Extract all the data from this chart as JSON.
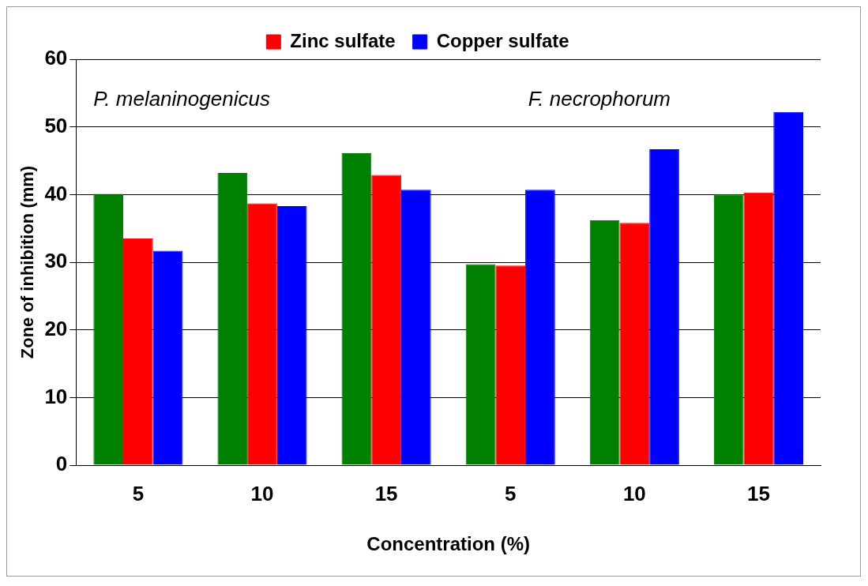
{
  "chart_data": {
    "type": "bar",
    "xlabel": "Concentration (%)",
    "ylabel": "Zone of inhibition (mm)",
    "categories": [
      "5",
      "10",
      "15",
      "5",
      "10",
      "15"
    ],
    "series": [
      {
        "color": "#008000",
        "values": [
          40.1,
          43.2,
          46.1,
          29.7,
          36.2,
          40.0
        ]
      },
      {
        "name": "Zinc sulfate",
        "color": "#ff0000",
        "values": [
          33.5,
          38.7,
          42.9,
          29.5,
          35.8,
          40.3
        ]
      },
      {
        "name": "Copper sulfate",
        "color": "#0000ff",
        "values": [
          31.7,
          38.3,
          40.7,
          40.7,
          46.7,
          52.2
        ]
      }
    ],
    "ylim": [
      0,
      60
    ],
    "yticks": [
      0,
      10,
      20,
      30,
      40,
      50,
      60
    ],
    "grid": "y",
    "legend": "top",
    "annotations": [
      "P. melaninogenicus",
      "F. necrophorum"
    ]
  }
}
